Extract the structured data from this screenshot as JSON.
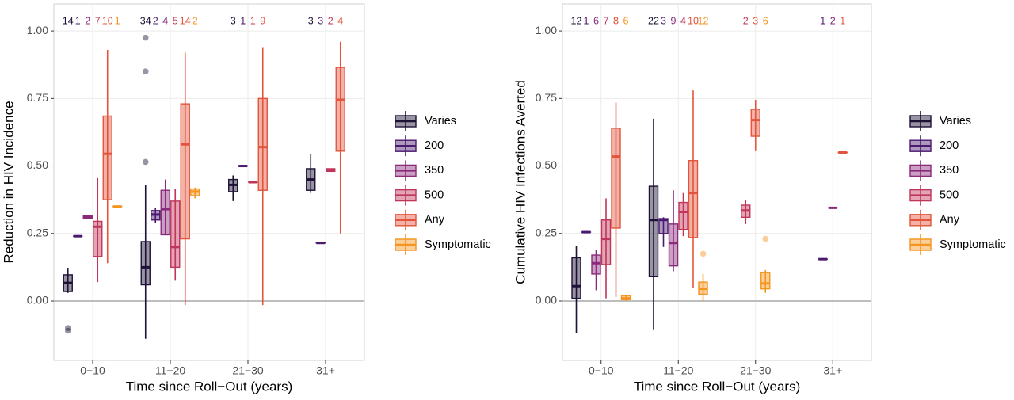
{
  "chart_data": [
    {
      "type": "box",
      "ylabel": "Reduction in HIV Incidence",
      "xlabel": "Time since Roll−Out (years)",
      "categories": [
        "0−10",
        "11−20",
        "21−30",
        "31+"
      ],
      "ylim": [
        -0.22,
        1.1
      ],
      "yticks": [
        {
          "value": 0,
          "label": "0.00"
        },
        {
          "value": 0.25,
          "label": "0.25"
        },
        {
          "value": 0.5,
          "label": "0.50"
        },
        {
          "value": 0.75,
          "label": "0.75"
        },
        {
          "value": 1,
          "label": "1.00"
        }
      ],
      "grid": true,
      "hline": 0,
      "legend": "right",
      "series": [
        {
          "name": "Varies",
          "color": "#1d1136",
          "boxes": [
            {
              "n": 14,
              "min": 0.03,
              "q1": 0.035,
              "median": 0.067,
              "q3": 0.097,
              "max": 0.123,
              "outliers": [
                -0.1,
                -0.11
              ]
            },
            {
              "n": 34,
              "min": -0.14,
              "q1": 0.06,
              "median": 0.125,
              "q3": 0.22,
              "max": 0.43,
              "outliers": [
                0.515,
                0.85,
                0.975
              ]
            },
            {
              "n": 3,
              "min": 0.37,
              "q1": 0.405,
              "median": 0.43,
              "q3": 0.45,
              "max": 0.465
            },
            {
              "n": 3,
              "min": 0.4,
              "q1": 0.41,
              "median": 0.45,
              "q3": 0.49,
              "max": 0.545
            }
          ]
        },
        {
          "name": "200",
          "color": "#4a1a6e",
          "boxes": [
            {
              "n": 1,
              "min": 0.24,
              "q1": 0.24,
              "median": 0.24,
              "q3": 0.24,
              "max": 0.24
            },
            {
              "n": 2,
              "min": 0.29,
              "q1": 0.3,
              "median": 0.32,
              "q3": 0.335,
              "max": 0.345
            },
            {
              "n": 1,
              "min": 0.5,
              "q1": 0.5,
              "median": 0.5,
              "q3": 0.5,
              "max": 0.5
            },
            {
              "n": 3,
              "min": 0.215,
              "q1": 0.215,
              "median": 0.215,
              "q3": 0.215,
              "max": 0.215
            }
          ]
        },
        {
          "name": "350",
          "color": "#8a2a7a",
          "boxes": [
            {
              "n": 2,
              "min": 0.305,
              "q1": 0.305,
              "median": 0.31,
              "q3": 0.315,
              "max": 0.315
            },
            {
              "n": 4,
              "min": 0.245,
              "q1": 0.245,
              "median": 0.34,
              "q3": 0.41,
              "max": 0.45
            },
            null,
            null
          ]
        },
        {
          "name": "500",
          "color": "#c0365a",
          "boxes": [
            {
              "n": 7,
              "min": 0.07,
              "q1": 0.165,
              "median": 0.275,
              "q3": 0.295,
              "max": 0.455
            },
            {
              "n": 5,
              "min": 0.075,
              "q1": 0.125,
              "median": 0.2,
              "q3": 0.37,
              "max": 0.415
            },
            {
              "n": 1,
              "min": 0.44,
              "q1": 0.44,
              "median": 0.44,
              "q3": 0.44,
              "max": 0.44
            },
            {
              "n": 2,
              "min": 0.48,
              "q1": 0.48,
              "median": 0.485,
              "q3": 0.49,
              "max": 0.49
            }
          ]
        },
        {
          "name": "Any",
          "color": "#e2553c",
          "boxes": [
            {
              "n": 10,
              "min": 0.14,
              "q1": 0.375,
              "median": 0.545,
              "q3": 0.685,
              "max": 0.93
            },
            {
              "n": 14,
              "min": -0.015,
              "q1": 0.23,
              "median": 0.58,
              "q3": 0.73,
              "max": 0.92
            },
            {
              "n": 9,
              "min": -0.015,
              "q1": 0.41,
              "median": 0.57,
              "q3": 0.75,
              "max": 0.94
            },
            {
              "n": 4,
              "min": 0.25,
              "q1": 0.555,
              "median": 0.745,
              "q3": 0.865,
              "max": 0.96
            }
          ]
        },
        {
          "name": "Symptomatic",
          "color": "#f3951e",
          "boxes": [
            {
              "n": 1,
              "min": 0.35,
              "q1": 0.35,
              "median": 0.35,
              "q3": 0.35,
              "max": 0.35
            },
            {
              "n": 2,
              "min": 0.38,
              "q1": 0.39,
              "median": 0.405,
              "q3": 0.415,
              "max": 0.42
            },
            null,
            null
          ]
        }
      ]
    },
    {
      "type": "box",
      "ylabel": "Cumulative HIV Infections Averted",
      "xlabel": "Time since Roll−Out (years)",
      "categories": [
        "0−10",
        "11−20",
        "21−30",
        "31+"
      ],
      "ylim": [
        -0.22,
        1.1
      ],
      "yticks": [
        {
          "value": 0,
          "label": "0.00"
        },
        {
          "value": 0.25,
          "label": "0.25"
        },
        {
          "value": 0.5,
          "label": "0.50"
        },
        {
          "value": 0.75,
          "label": "0.75"
        },
        {
          "value": 1,
          "label": "1.00"
        }
      ],
      "grid": true,
      "hline": 0,
      "legend": "right",
      "series": [
        {
          "name": "Varies",
          "color": "#1d1136",
          "boxes": [
            {
              "n": 12,
              "min": -0.12,
              "q1": 0.01,
              "median": 0.055,
              "q3": 0.16,
              "max": 0.205
            },
            {
              "n": 22,
              "min": -0.105,
              "q1": 0.09,
              "median": 0.3,
              "q3": 0.425,
              "max": 0.675
            },
            null,
            null
          ]
        },
        {
          "name": "200",
          "color": "#4a1a6e",
          "boxes": [
            {
              "n": 1,
              "min": 0.255,
              "q1": 0.255,
              "median": 0.255,
              "q3": 0.255,
              "max": 0.255
            },
            {
              "n": 3,
              "min": 0.2,
              "q1": 0.25,
              "median": 0.3,
              "q3": 0.305,
              "max": 0.31
            },
            null,
            {
              "n": 1,
              "min": 0.155,
              "q1": 0.155,
              "median": 0.155,
              "q3": 0.155,
              "max": 0.155
            }
          ]
        },
        {
          "name": "350",
          "color": "#8a2a7a",
          "boxes": [
            {
              "n": 6,
              "min": 0.04,
              "q1": 0.1,
              "median": 0.14,
              "q3": 0.17,
              "max": 0.19
            },
            {
              "n": 9,
              "min": 0.11,
              "q1": 0.13,
              "median": 0.215,
              "q3": 0.285,
              "max": 0.41
            },
            null,
            {
              "n": 2,
              "min": 0.345,
              "q1": 0.345,
              "median": 0.345,
              "q3": 0.345,
              "max": 0.345
            }
          ]
        },
        {
          "name": "500",
          "color": "#c0365a",
          "boxes": [
            {
              "n": 7,
              "min": 0.01,
              "q1": 0.135,
              "median": 0.23,
              "q3": 0.3,
              "max": 0.38
            },
            {
              "n": 4,
              "min": 0.24,
              "q1": 0.265,
              "median": 0.33,
              "q3": 0.365,
              "max": 0.4
            },
            {
              "n": 2,
              "min": 0.285,
              "q1": 0.31,
              "median": 0.335,
              "q3": 0.355,
              "max": 0.375
            },
            null
          ]
        },
        {
          "name": "Any",
          "color": "#e2553c",
          "boxes": [
            {
              "n": 8,
              "min": 0.015,
              "q1": 0.27,
              "median": 0.535,
              "q3": 0.64,
              "max": 0.735
            },
            {
              "n": 10,
              "min": 0.05,
              "q1": 0.235,
              "median": 0.4,
              "q3": 0.52,
              "max": 0.78
            },
            {
              "n": 3,
              "min": 0.555,
              "q1": 0.61,
              "median": 0.67,
              "q3": 0.71,
              "max": 0.745
            },
            {
              "n": 1,
              "min": 0.55,
              "q1": 0.55,
              "median": 0.55,
              "q3": 0.55,
              "max": 0.55
            }
          ]
        },
        {
          "name": "Symptomatic",
          "color": "#f3951e",
          "boxes": [
            {
              "n": 6,
              "min": 0,
              "q1": 0.005,
              "median": 0.01,
              "q3": 0.02,
              "max": 0.02
            },
            {
              "n": 12,
              "min": 0,
              "q1": 0.025,
              "median": 0.045,
              "q3": 0.07,
              "max": 0.1,
              "outliers": [
                0.175
              ]
            },
            {
              "n": 6,
              "min": 0.03,
              "q1": 0.045,
              "median": 0.065,
              "q3": 0.105,
              "max": 0.115,
              "outliers": [
                0.23
              ]
            },
            null
          ]
        }
      ]
    }
  ]
}
